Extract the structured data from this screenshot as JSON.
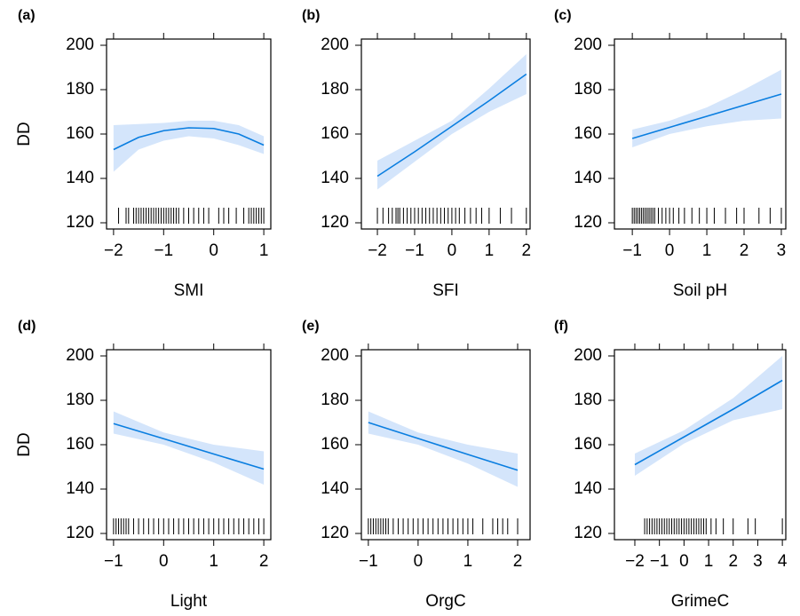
{
  "chart_data": [
    {
      "type": "line",
      "label": "(a)",
      "xlabel": "SMI",
      "ylabel": "DD",
      "color": "#0a7ee0",
      "band_color": "#d4e5fb",
      "xlim": [
        -2.14,
        1.14
      ],
      "ylim": [
        117.2,
        202.8
      ],
      "xticks": [
        {
          "value": -2,
          "label": "−2"
        },
        {
          "value": -1,
          "label": "−1"
        },
        0,
        1
      ],
      "yticks": [
        120,
        140,
        160,
        180,
        200
      ],
      "x": [
        -2,
        -1.5,
        -1,
        -0.5,
        0,
        0.5,
        1
      ],
      "values": [
        153,
        158.5,
        161.5,
        162.8,
        162.5,
        160,
        155
      ],
      "lower": [
        143,
        153,
        157,
        159,
        158,
        155,
        151
      ],
      "upper": [
        164,
        164.5,
        165,
        166,
        166,
        164,
        159
      ],
      "rug": [
        -1.9,
        -1.75,
        -1.7,
        -1.6,
        -1.55,
        -1.5,
        -1.45,
        -1.4,
        -1.35,
        -1.3,
        -1.25,
        -1.2,
        -1.15,
        -1.1,
        -1.05,
        -1.0,
        -0.95,
        -0.9,
        -0.85,
        -0.8,
        -0.75,
        -0.7,
        -0.6,
        -0.5,
        -0.4,
        -0.3,
        -0.2,
        -0.1,
        0.1,
        0.2,
        0.3,
        0.45,
        0.6,
        0.7,
        0.75,
        0.8,
        0.85,
        0.9,
        0.95,
        1.0
      ]
    },
    {
      "type": "line",
      "label": "(b)",
      "xlabel": "SFI",
      "color": "#0a7ee0",
      "band_color": "#d4e5fb",
      "xlim": [
        -2.43,
        2.1
      ],
      "ylim": [
        117.2,
        202.8
      ],
      "xticks": [
        {
          "value": -2,
          "label": "−2"
        },
        {
          "value": -1,
          "label": "−1"
        },
        0,
        1,
        2
      ],
      "yticks": [
        120,
        140,
        160,
        180,
        200
      ],
      "x": [
        -2,
        -1,
        0,
        1,
        2
      ],
      "values": [
        141,
        152,
        163.5,
        175,
        187
      ],
      "lower": [
        135,
        147.5,
        160,
        170,
        178
      ],
      "upper": [
        148,
        157,
        166,
        180.5,
        196
      ],
      "rug": [
        -2.0,
        -1.85,
        -1.7,
        -1.6,
        -1.5,
        -1.45,
        -1.4,
        -1.3,
        -1.2,
        -1.1,
        -1.0,
        -0.9,
        -0.8,
        -0.7,
        -0.6,
        -0.5,
        -0.4,
        -0.3,
        -0.2,
        -0.1,
        0.0,
        0.1,
        0.2,
        0.35,
        0.5,
        0.65,
        0.8,
        1.0,
        1.3,
        1.6,
        2.0
      ]
    },
    {
      "type": "line",
      "label": "(c)",
      "xlabel": "Soil pH",
      "color": "#0a7ee0",
      "band_color": "#d4e5fb",
      "xlim": [
        -1.48,
        3.12
      ],
      "ylim": [
        117.2,
        202.8
      ],
      "xticks": [
        {
          "value": -1,
          "label": "−1"
        },
        0,
        1,
        2,
        3
      ],
      "yticks": [
        120,
        140,
        160,
        180,
        200
      ],
      "x": [
        -1,
        0,
        1,
        2,
        3
      ],
      "values": [
        158,
        163,
        168,
        173,
        178
      ],
      "lower": [
        154,
        160,
        163.5,
        166,
        167
      ],
      "upper": [
        162,
        166,
        172,
        180,
        189
      ],
      "rug": [
        -1.0,
        -0.95,
        -0.9,
        -0.85,
        -0.8,
        -0.75,
        -0.7,
        -0.65,
        -0.6,
        -0.55,
        -0.5,
        -0.45,
        -0.4,
        -0.3,
        -0.2,
        -0.1,
        0.0,
        0.1,
        0.25,
        0.4,
        0.6,
        0.8,
        1.0,
        1.2,
        1.5,
        1.8,
        2.0,
        2.4,
        2.7,
        3.0
      ]
    },
    {
      "type": "line",
      "label": "(d)",
      "xlabel": "Light",
      "ylabel": "DD",
      "color": "#0a7ee0",
      "band_color": "#d4e5fb",
      "xlim": [
        -1.14,
        2.14
      ],
      "ylim": [
        117.2,
        202.8
      ],
      "xticks": [
        {
          "value": -1,
          "label": "−1"
        },
        0,
        1,
        2
      ],
      "yticks": [
        120,
        140,
        160,
        180,
        200
      ],
      "x": [
        -1,
        0,
        1,
        2
      ],
      "values": [
        169.5,
        162.7,
        155.8,
        149
      ],
      "lower": [
        165,
        160,
        152,
        142
      ],
      "upper": [
        175,
        165.5,
        160,
        157
      ],
      "rug": [
        -1.0,
        -0.95,
        -0.9,
        -0.85,
        -0.8,
        -0.75,
        -0.7,
        -0.6,
        -0.5,
        -0.4,
        -0.3,
        -0.2,
        -0.1,
        0.0,
        0.1,
        0.2,
        0.3,
        0.4,
        0.5,
        0.6,
        0.7,
        0.8,
        0.9,
        1.0,
        1.1,
        1.2,
        1.3,
        1.4,
        1.5,
        1.6,
        1.7,
        1.8,
        1.9,
        2.0
      ]
    },
    {
      "type": "line",
      "label": "(e)",
      "xlabel": "OrgC",
      "color": "#0a7ee0",
      "band_color": "#d4e5fb",
      "xlim": [
        -1.14,
        2.25
      ],
      "ylim": [
        117.2,
        202.8
      ],
      "xticks": [
        {
          "value": -1,
          "label": "−1"
        },
        0,
        1,
        2
      ],
      "yticks": [
        120,
        140,
        160,
        180,
        200
      ],
      "x": [
        -1,
        0,
        1,
        2
      ],
      "values": [
        170,
        162.8,
        155.6,
        148.5
      ],
      "lower": [
        165,
        160,
        151.5,
        141
      ],
      "upper": [
        175,
        165.5,
        160,
        156
      ],
      "rug": [
        -1.0,
        -0.95,
        -0.9,
        -0.85,
        -0.8,
        -0.75,
        -0.7,
        -0.65,
        -0.6,
        -0.5,
        -0.4,
        -0.3,
        -0.2,
        -0.1,
        0.0,
        0.1,
        0.2,
        0.3,
        0.4,
        0.5,
        0.6,
        0.7,
        0.8,
        0.9,
        1.0,
        1.1,
        1.3,
        1.5,
        1.6,
        1.7,
        1.8,
        2.0
      ]
    },
    {
      "type": "line",
      "label": "(f)",
      "xlabel": "GrimeC",
      "color": "#0a7ee0",
      "band_color": "#d4e5fb",
      "xlim": [
        -2.83,
        4.14
      ],
      "ylim": [
        117.2,
        202.8
      ],
      "xticks": [
        {
          "value": -2,
          "label": "−2"
        },
        {
          "value": -1,
          "label": "−1"
        },
        0,
        1,
        2,
        3,
        4
      ],
      "yticks": [
        120,
        140,
        160,
        180,
        200
      ],
      "x": [
        -2,
        0,
        2,
        4
      ],
      "values": [
        151,
        163.5,
        176,
        189
      ],
      "lower": [
        146,
        160.5,
        171,
        176
      ],
      "upper": [
        156,
        166.5,
        181,
        200
      ],
      "rug": [
        -1.6,
        -1.5,
        -1.4,
        -1.3,
        -1.2,
        -1.1,
        -1.0,
        -0.9,
        -0.8,
        -0.7,
        -0.6,
        -0.5,
        -0.4,
        -0.3,
        -0.2,
        -0.1,
        0.0,
        0.1,
        0.2,
        0.3,
        0.4,
        0.5,
        0.6,
        0.7,
        0.8,
        0.9,
        1.1,
        1.3,
        1.6,
        2.0,
        2.6,
        2.9,
        4.0
      ]
    }
  ]
}
